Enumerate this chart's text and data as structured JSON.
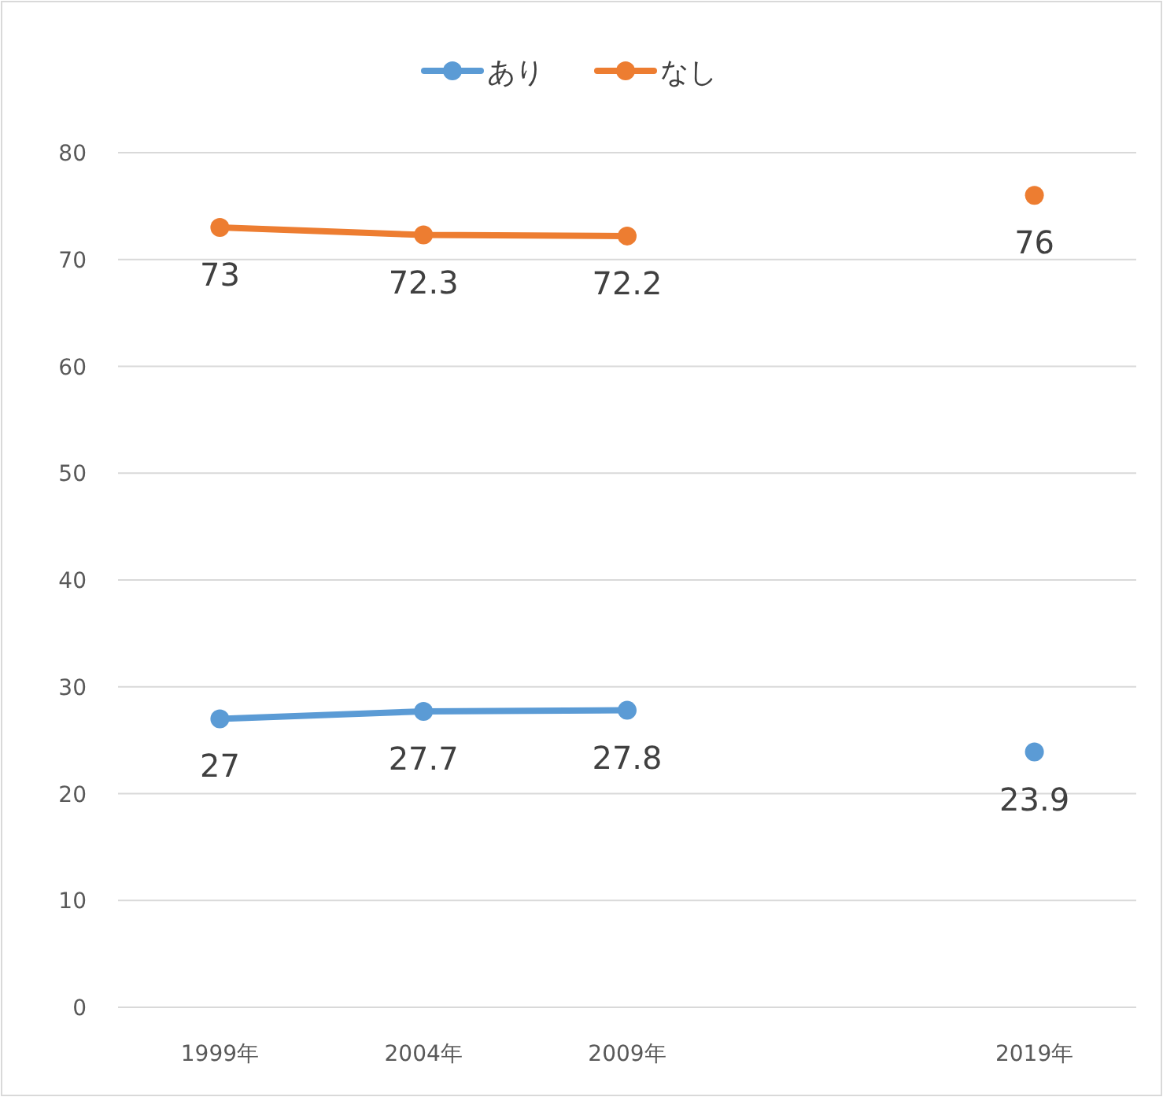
{
  "chart_data": {
    "type": "line",
    "categories": [
      "1999年",
      "2004年",
      "2009年",
      null,
      "2019年"
    ],
    "series": [
      {
        "name": "あり",
        "color": "#5b9bd5",
        "values": [
          27,
          27.7,
          27.8,
          null,
          23.9
        ]
      },
      {
        "name": "なし",
        "color": "#ed7d31",
        "values": [
          73,
          72.3,
          72.2,
          null,
          76
        ]
      }
    ],
    "ylim": [
      0,
      80
    ],
    "yticks": [
      0,
      10,
      20,
      30,
      40,
      50,
      60,
      70,
      80
    ],
    "grid": "y",
    "legend": "top",
    "marker": "circle",
    "data_labels": true
  }
}
